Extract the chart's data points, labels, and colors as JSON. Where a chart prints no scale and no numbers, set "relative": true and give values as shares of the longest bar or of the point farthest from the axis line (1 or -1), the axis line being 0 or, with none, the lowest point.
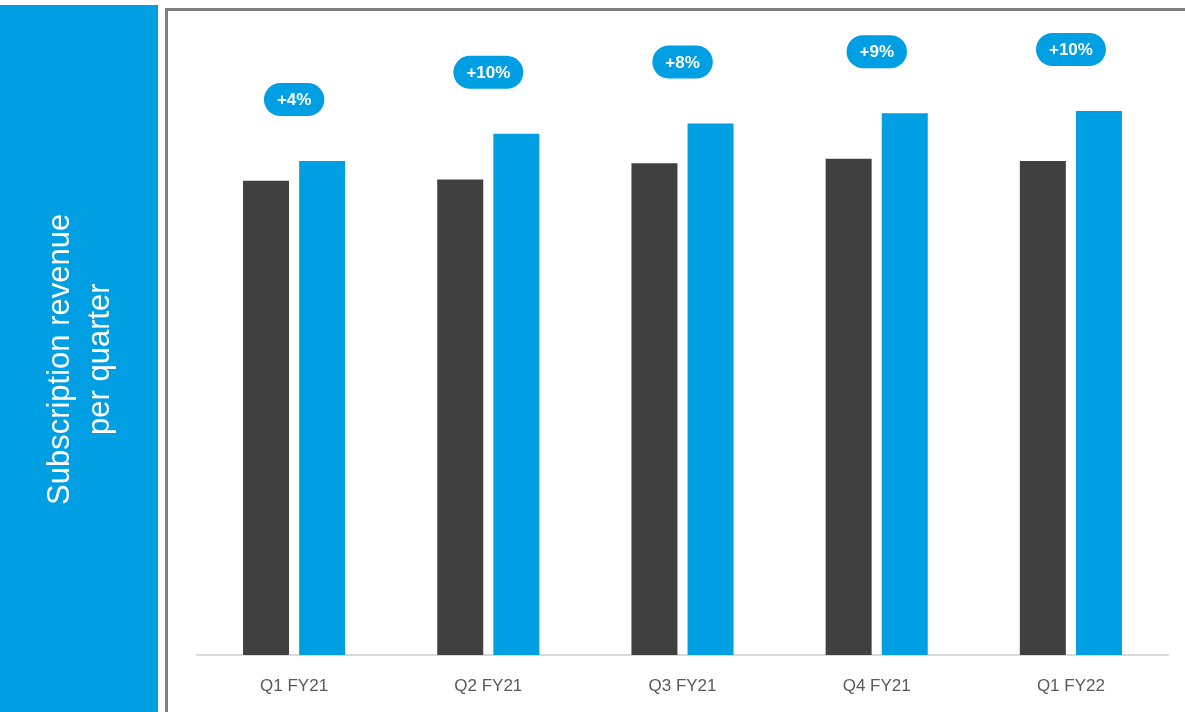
{
  "chart_data": {
    "type": "bar",
    "relative": true,
    "ylabel": "Subscription revenue per quarter",
    "categories": [
      "Q1 FY21",
      "Q2 FY21",
      "Q3 FY21",
      "Q4 FY21",
      "Q1 FY22"
    ],
    "series": [
      {
        "color": "#404040",
        "values": [
          0.872,
          0.874,
          0.904,
          0.912,
          0.908
        ]
      },
      {
        "color": "#009fe3",
        "values": [
          0.908,
          0.958,
          0.977,
          0.996,
          1
        ]
      }
    ],
    "annotations": [
      "+4%",
      "+10%",
      "+8%",
      "+9%",
      "+10%"
    ]
  }
}
